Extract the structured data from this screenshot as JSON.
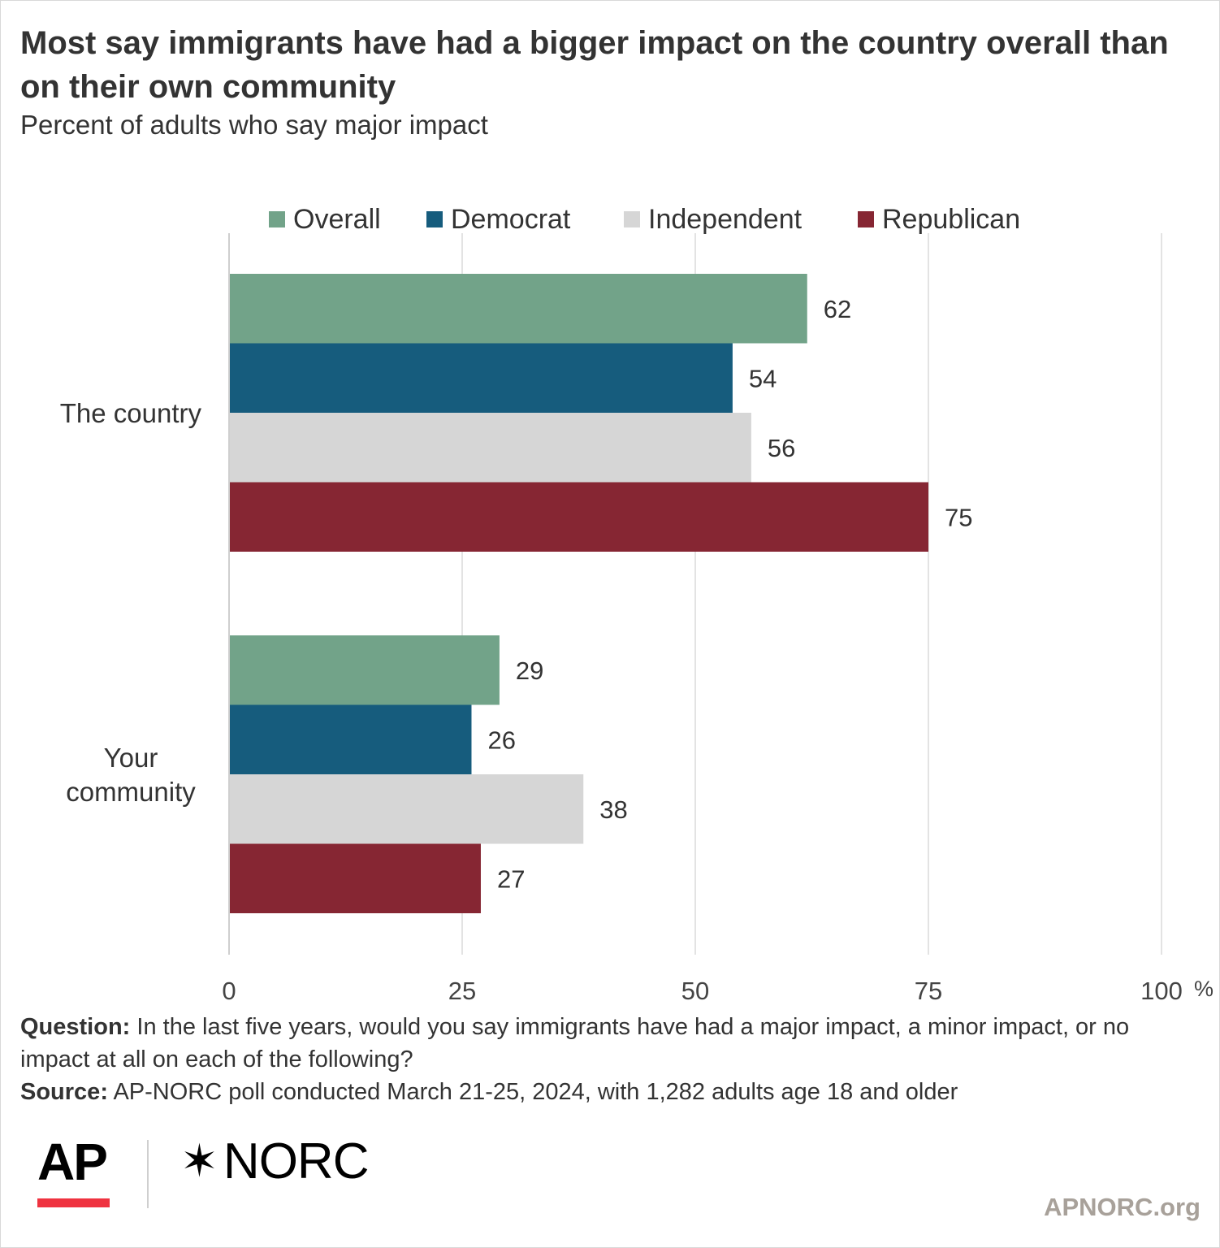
{
  "title": "Most say immigrants have had a bigger impact on the country overall than on their own community",
  "subtitle": "Percent of adults who say major impact",
  "chart_data": {
    "type": "bar",
    "orientation": "horizontal",
    "categories": [
      "The country",
      "Your community"
    ],
    "series": [
      {
        "name": "Overall",
        "color": "#72a389",
        "values": [
          62,
          29
        ]
      },
      {
        "name": "Democrat",
        "color": "#165c7d",
        "values": [
          54,
          26
        ]
      },
      {
        "name": "Independent",
        "color": "#d6d6d6",
        "values": [
          56,
          38
        ]
      },
      {
        "name": "Republican",
        "color": "#862633",
        "values": [
          75,
          27
        ]
      }
    ],
    "xlim": [
      0,
      100
    ],
    "x_ticks": [
      "0",
      "25",
      "50",
      "75",
      "100"
    ],
    "x_unit": "%",
    "grid": "vertical",
    "legend_position": "top"
  },
  "notes": {
    "question_label": "Question:",
    "question_text": " In the last five years, would you say immigrants have had a major impact, a minor impact, or no impact at all on each of the following?",
    "source_label": "Source:",
    "source_text": " AP-NORC poll conducted March 21-25, 2024, with 1,282 adults age 18 and older"
  },
  "logos": {
    "ap": "AP",
    "norc_mark": "✶",
    "norc": "NORC"
  },
  "site": "APNORC.org"
}
